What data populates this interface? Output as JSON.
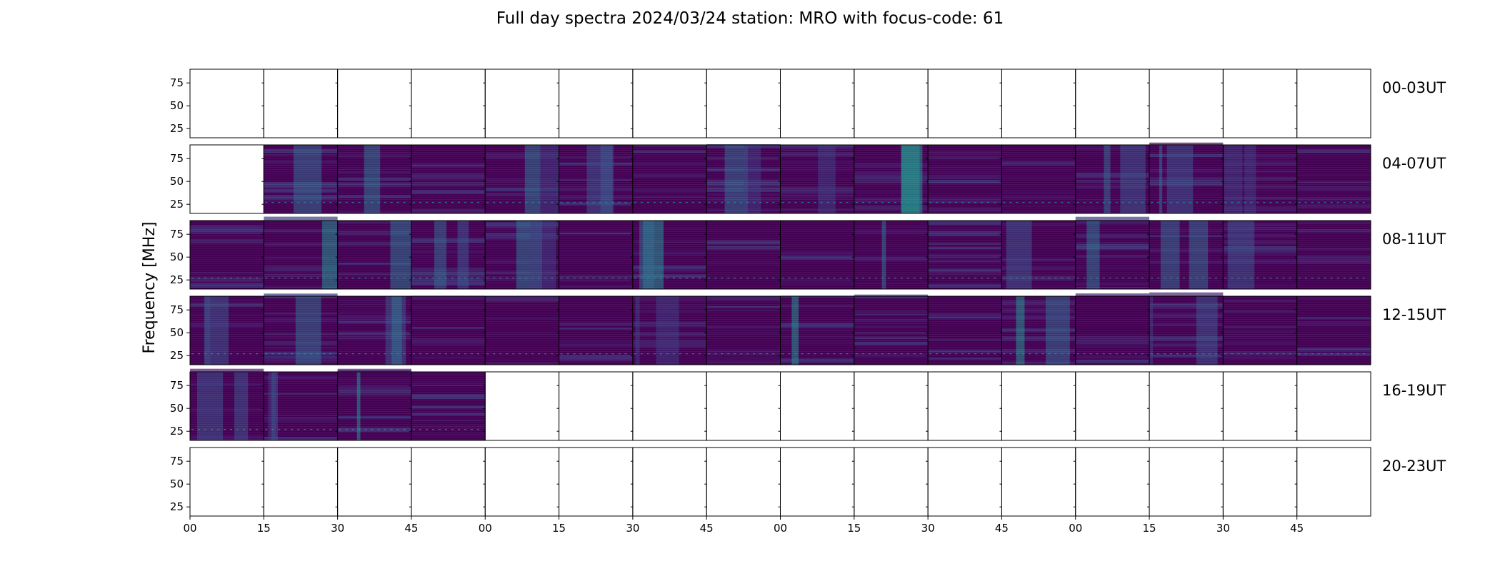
{
  "chart_data": {
    "type": "heatmap",
    "title": "Full day spectra 2024/03/24 station: MRO with focus-code: 61",
    "ylabel": "Frequency [MHz]",
    "xlabel": "",
    "ylim": [
      15,
      90
    ],
    "yticks": [
      "25",
      "50",
      "75"
    ],
    "ytick_values": [
      25,
      50,
      75
    ],
    "xticks": [
      "00",
      "15",
      "30",
      "45",
      "00",
      "15",
      "30",
      "45",
      "00",
      "15",
      "30",
      "45",
      "00",
      "15",
      "30",
      "45"
    ],
    "colormap": "viridis",
    "colors": {
      "low": "#440154",
      "mid": "#3b528b",
      "teal": "#21918c",
      "high": "#5ec962"
    },
    "panels_per_row": 16,
    "minutes_per_panel": 15,
    "rows": [
      {
        "label": "00-03UT",
        "data_panels": []
      },
      {
        "label": "04-07UT",
        "data_panels": [
          1,
          2,
          3,
          4,
          5,
          6,
          7,
          8,
          9,
          10,
          11,
          12,
          13,
          14,
          15
        ]
      },
      {
        "label": "08-11UT",
        "data_panels": [
          0,
          1,
          2,
          3,
          4,
          5,
          6,
          7,
          8,
          9,
          10,
          11,
          12,
          13,
          14,
          15
        ]
      },
      {
        "label": "12-15UT",
        "data_panels": [
          0,
          1,
          2,
          3,
          4,
          5,
          6,
          7,
          8,
          9,
          10,
          11,
          12,
          13,
          14,
          15
        ]
      },
      {
        "label": "16-19UT",
        "data_panels": [
          0,
          1,
          2,
          3
        ]
      },
      {
        "label": "20-23UT",
        "data_panels": []
      }
    ],
    "grid": false
  }
}
